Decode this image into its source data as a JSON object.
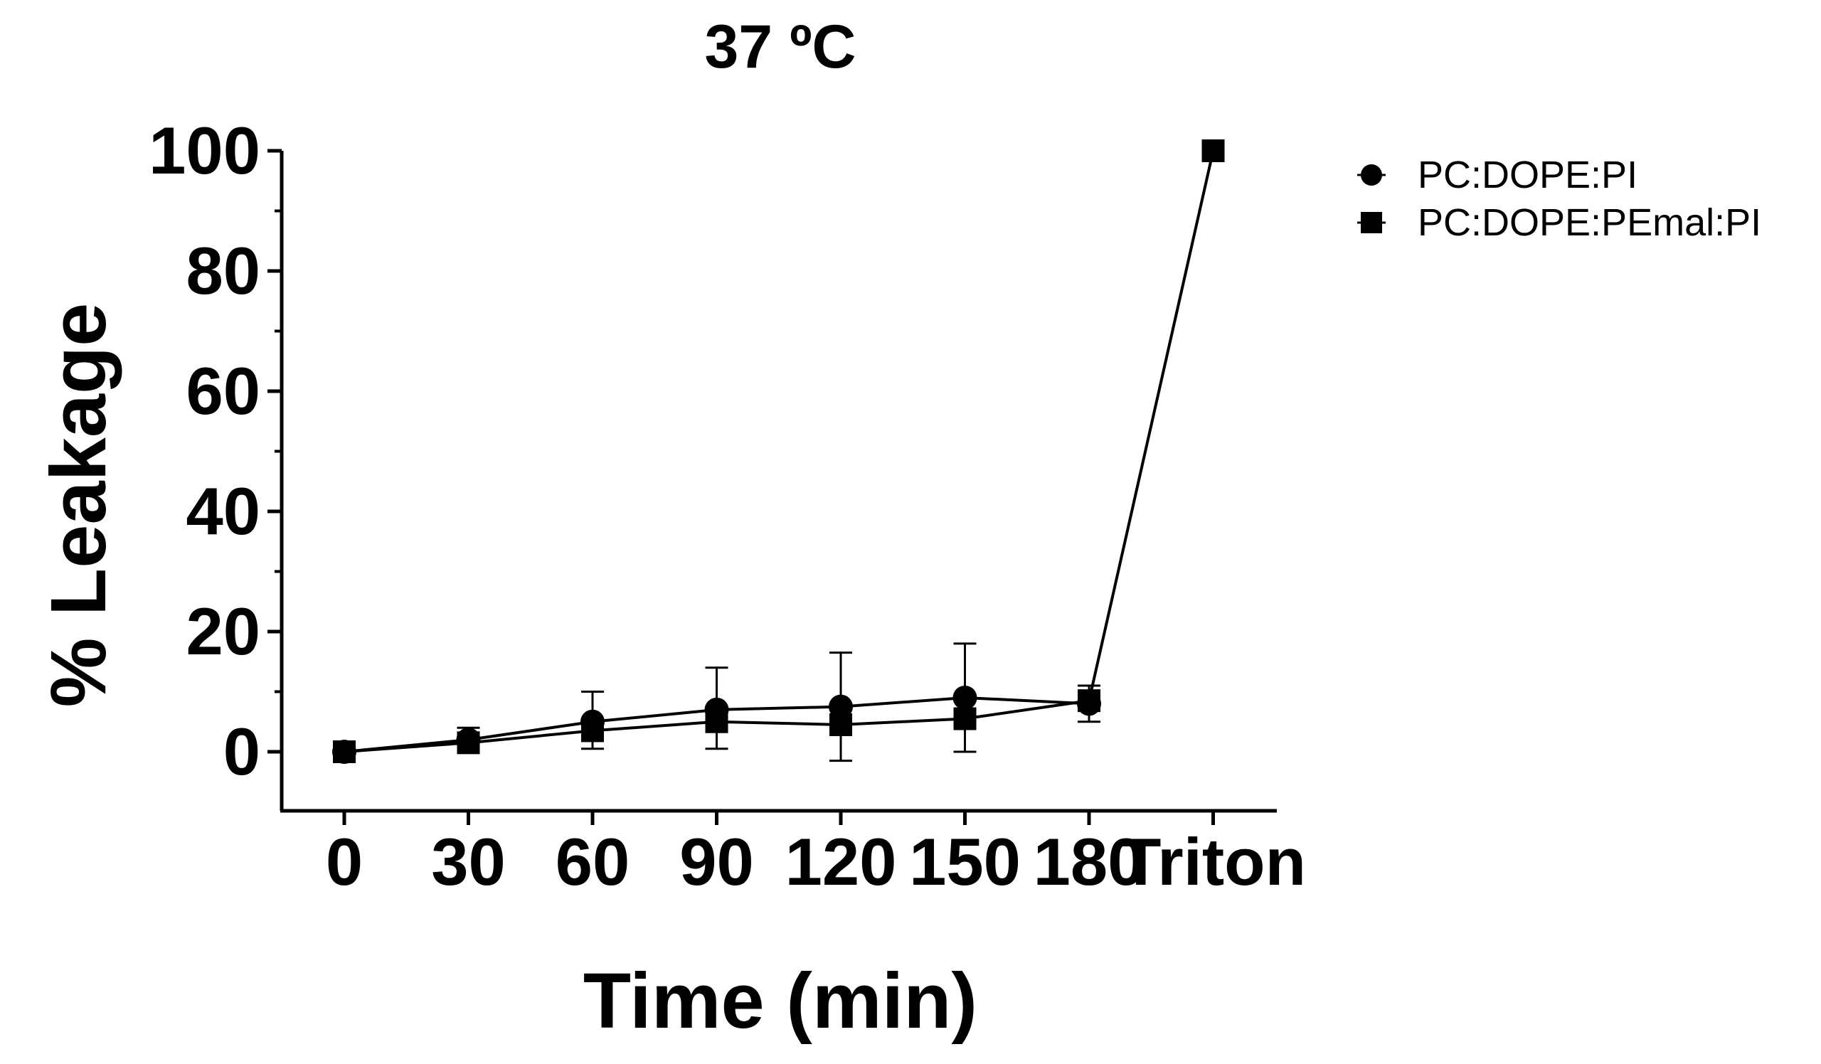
{
  "chart_data": {
    "type": "line",
    "title": "37 ºC",
    "xlabel": "Time (min)",
    "ylabel": "% Leakage",
    "categories": [
      "0",
      "30",
      "60",
      "90",
      "120",
      "150",
      "180",
      "Triton"
    ],
    "ylim": [
      -10,
      100
    ],
    "yticks": [
      0,
      20,
      40,
      60,
      80,
      100
    ],
    "y_minor_step": 10,
    "grid": false,
    "legend_position": "top-right",
    "series": [
      {
        "name": "PC:DOPE:PI",
        "marker": "circle",
        "values": [
          0,
          2,
          5,
          7,
          7.5,
          9,
          8,
          null
        ],
        "error_upper": [
          0,
          2,
          5,
          7,
          9,
          9,
          3,
          null
        ],
        "error_lower": [
          0,
          0,
          0,
          0,
          0,
          0,
          0,
          null
        ]
      },
      {
        "name": "PC:DOPE:PEmal:PI",
        "marker": "square",
        "values": [
          0,
          1.5,
          3.5,
          5,
          4.5,
          5.5,
          8.5,
          100
        ],
        "error_upper": [
          0,
          0,
          0,
          0,
          0,
          0,
          0,
          0
        ],
        "error_lower": [
          0,
          0,
          3,
          4.5,
          6,
          5.5,
          3.5,
          0
        ]
      }
    ],
    "colors": {
      "line": "#000000",
      "marker": "#000000",
      "background": "#ffffff"
    }
  }
}
